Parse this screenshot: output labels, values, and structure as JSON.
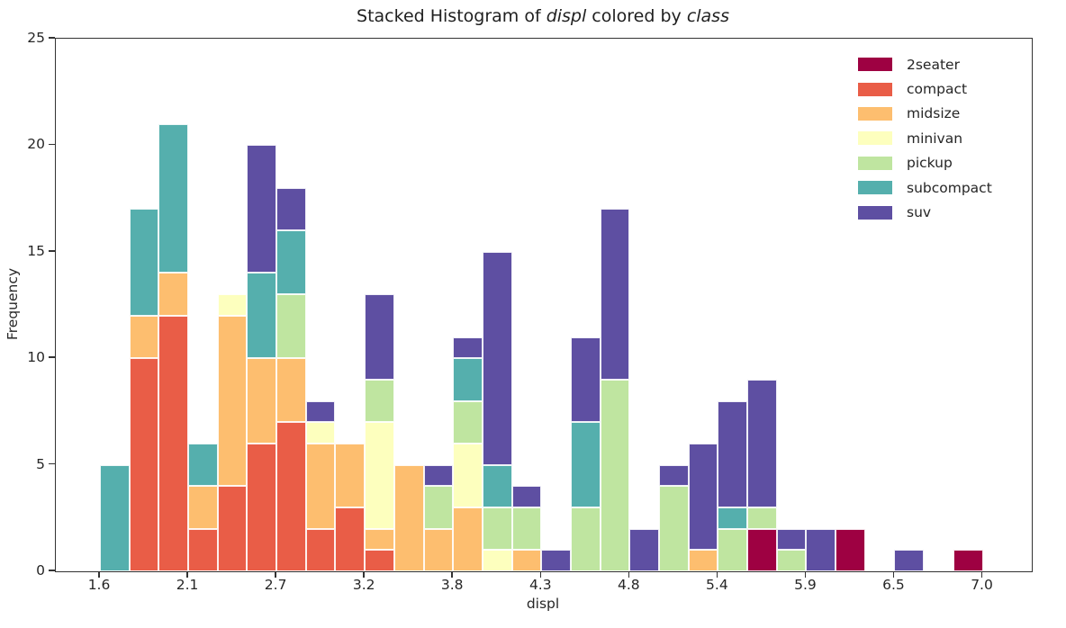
{
  "title": {
    "prefix": "Stacked Histogram of ",
    "var1": "displ",
    "middle": " colored by ",
    "var2": "class"
  },
  "axes": {
    "xlabel": "displ",
    "ylabel": "Frequency",
    "x_tick_labels": [
      "1.6",
      "2.1",
      "2.7",
      "3.2",
      "3.8",
      "4.3",
      "4.8",
      "5.4",
      "5.9",
      "6.5",
      "7.0"
    ],
    "y_tick_labels": [
      "0",
      "5",
      "10",
      "15",
      "20",
      "25"
    ]
  },
  "legend": {
    "entries": [
      {
        "label": "2seater",
        "color": "#9e0142"
      },
      {
        "label": "compact",
        "color": "#e95d47"
      },
      {
        "label": "midsize",
        "color": "#fdbe6f"
      },
      {
        "label": "minivan",
        "color": "#fdffbe"
      },
      {
        "label": "pickup",
        "color": "#bfe5a0"
      },
      {
        "label": "subcompact",
        "color": "#55afad"
      },
      {
        "label": "suv",
        "color": "#5e4fa2"
      }
    ]
  },
  "chart_data": {
    "type": "bar",
    "subtype": "stacked-histogram",
    "title": "Stacked Histogram of displ colored by class",
    "xlabel": "displ",
    "ylabel": "Frequency",
    "xlim": [
      1.33,
      7.3
    ],
    "ylim": [
      0,
      25
    ],
    "x_tick_values": [
      1.6,
      2.14,
      2.68,
      3.22,
      3.76,
      4.3,
      4.84,
      5.38,
      5.92,
      6.46,
      7.0
    ],
    "y_tick_values": [
      0,
      5,
      10,
      15,
      20,
      25
    ],
    "grid": false,
    "legend_position": "upper right",
    "bin_start": 1.6,
    "bin_width": 0.18,
    "bin_count": 30,
    "total_count": 234,
    "series": [
      {
        "name": "2seater",
        "color": "#9e0142",
        "values": [
          0,
          0,
          0,
          0,
          0,
          0,
          0,
          0,
          0,
          0,
          0,
          0,
          0,
          0,
          0,
          0,
          0,
          0,
          0,
          0,
          0,
          0,
          2,
          0,
          0,
          2,
          0,
          0,
          0,
          1
        ]
      },
      {
        "name": "compact",
        "color": "#e95d47",
        "values": [
          0,
          10,
          12,
          2,
          4,
          6,
          7,
          2,
          3,
          1,
          0,
          0,
          0,
          0,
          0,
          0,
          0,
          0,
          0,
          0,
          0,
          0,
          0,
          0,
          0,
          0,
          0,
          0,
          0,
          0
        ]
      },
      {
        "name": "midsize",
        "color": "#fdbe6f",
        "values": [
          0,
          2,
          2,
          2,
          8,
          4,
          3,
          4,
          3,
          1,
          5,
          2,
          3,
          0,
          1,
          0,
          0,
          0,
          0,
          0,
          1,
          0,
          0,
          0,
          0,
          0,
          0,
          0,
          0,
          0
        ]
      },
      {
        "name": "minivan",
        "color": "#fdffbe",
        "values": [
          0,
          0,
          0,
          0,
          1,
          0,
          0,
          1,
          0,
          5,
          0,
          0,
          3,
          1,
          0,
          0,
          0,
          0,
          0,
          0,
          0,
          0,
          0,
          0,
          0,
          0,
          0,
          0,
          0,
          0
        ]
      },
      {
        "name": "pickup",
        "color": "#bfe5a0",
        "values": [
          0,
          0,
          0,
          0,
          0,
          0,
          3,
          0,
          0,
          2,
          0,
          2,
          2,
          2,
          2,
          0,
          3,
          9,
          0,
          4,
          0,
          2,
          1,
          1,
          0,
          0,
          0,
          0,
          0,
          0
        ]
      },
      {
        "name": "subcompact",
        "color": "#55afad",
        "values": [
          5,
          5,
          7,
          2,
          0,
          4,
          3,
          0,
          0,
          0,
          0,
          0,
          2,
          2,
          0,
          0,
          4,
          0,
          0,
          0,
          0,
          1,
          0,
          0,
          0,
          0,
          0,
          0,
          0,
          0
        ]
      },
      {
        "name": "suv",
        "color": "#5e4fa2",
        "values": [
          0,
          0,
          0,
          0,
          0,
          6,
          2,
          1,
          0,
          4,
          0,
          1,
          1,
          10,
          1,
          1,
          4,
          8,
          2,
          1,
          5,
          5,
          6,
          1,
          2,
          0,
          0,
          1,
          0,
          0
        ]
      }
    ]
  }
}
